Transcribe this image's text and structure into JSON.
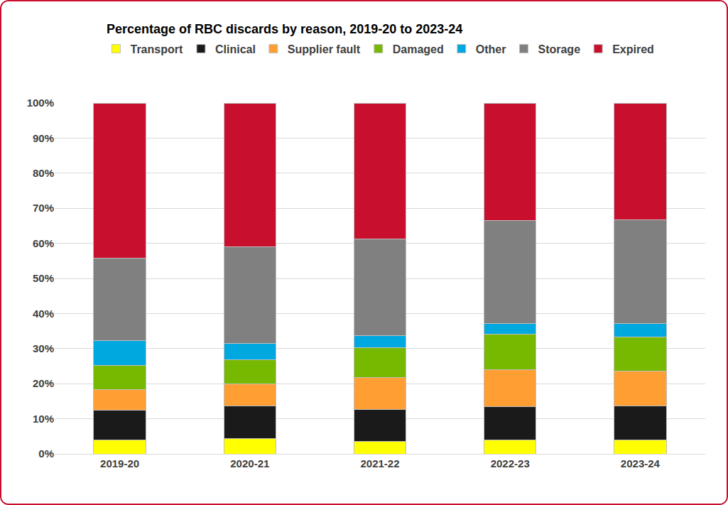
{
  "chart_data": {
    "type": "bar",
    "title": "Percentage of RBC discards by reason, 2019-20 to 2023-24",
    "categories": [
      "2019-20",
      "2020-21",
      "2021-22",
      "2022-23",
      "2023-24"
    ],
    "stacked": true,
    "grid": true,
    "legend": "top",
    "ylim": [
      0,
      100
    ],
    "yticks": [
      {
        "value": 0,
        "label": "0%"
      },
      {
        "value": 10,
        "label": "10%"
      },
      {
        "value": 20,
        "label": "20%"
      },
      {
        "value": 30,
        "label": "30%"
      },
      {
        "value": 40,
        "label": "40%"
      },
      {
        "value": 50,
        "label": "50%"
      },
      {
        "value": 60,
        "label": "60%"
      },
      {
        "value": 70,
        "label": "70%"
      },
      {
        "value": 80,
        "label": "80%"
      },
      {
        "value": 90,
        "label": "90%"
      },
      {
        "value": 100,
        "label": "100%"
      }
    ],
    "series": [
      {
        "name": "Transport",
        "color": "#ffff00",
        "values": [
          4,
          4.3,
          3.5,
          4,
          4
        ]
      },
      {
        "name": "Clinical",
        "color": "#1a1a1a",
        "values": [
          8.5,
          9.4,
          9.1,
          9.5,
          9.7
        ]
      },
      {
        "name": "Supplier fault",
        "color": "#ff9f33",
        "values": [
          5.8,
          6.3,
          9.2,
          10.5,
          9.9
        ]
      },
      {
        "name": "Damaged",
        "color": "#77b800",
        "values": [
          7,
          6.8,
          8.5,
          10.2,
          9.7
        ]
      },
      {
        "name": "Other",
        "color": "#00a8e0",
        "values": [
          7,
          4.7,
          3.4,
          3,
          3.9
        ]
      },
      {
        "name": "Storage",
        "color": "#808080",
        "values": [
          23.4,
          27.5,
          27.5,
          29.4,
          29.6
        ]
      },
      {
        "name": "Expired",
        "color": "#c8102e",
        "values": [
          44.3,
          41,
          38.8,
          33.4,
          33.2
        ]
      }
    ]
  }
}
